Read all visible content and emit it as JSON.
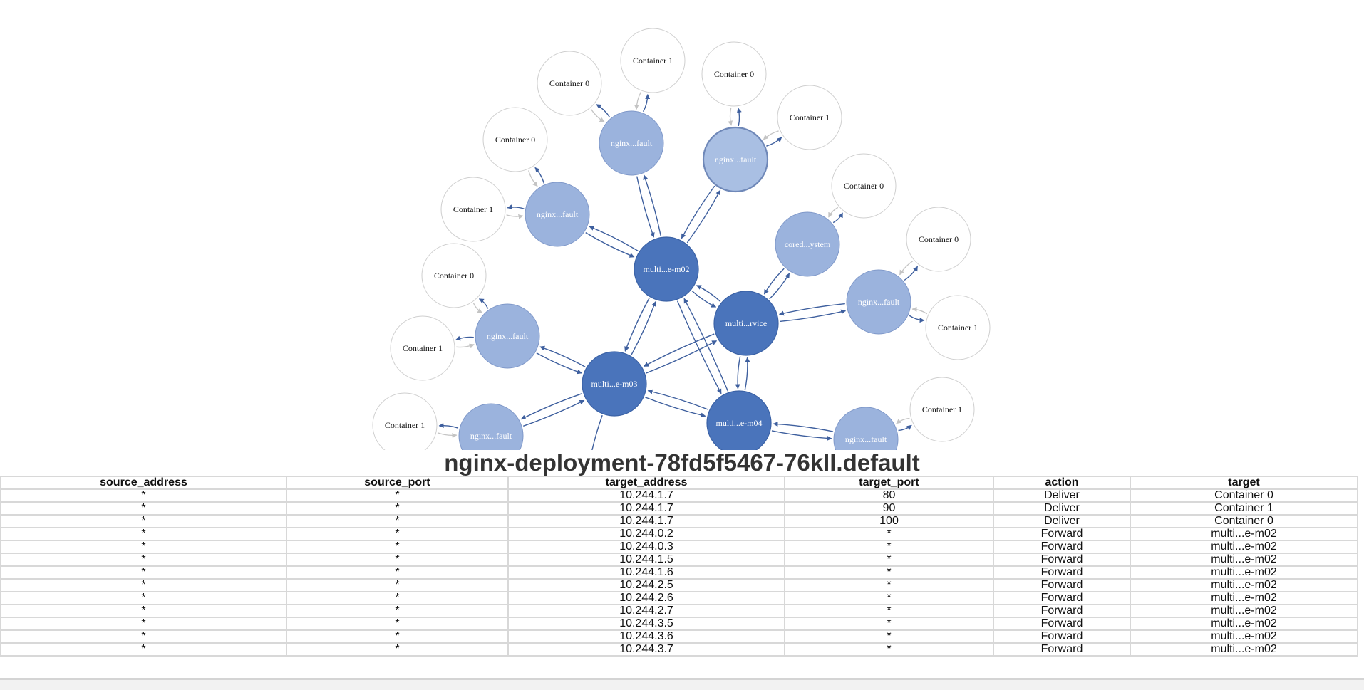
{
  "colors": {
    "host": "#4a74bb",
    "host_stroke": "#3b62a6",
    "pod": "#9bb3dd",
    "pod_stroke": "#7f98c9",
    "selected_pod": "#a9bfe3",
    "container": "#ffffff",
    "container_stroke": "#cfcfcf",
    "edge_strong": "#3e5f9e",
    "edge_light": "#c4c4c4"
  },
  "graph": {
    "nodes": [
      {
        "id": "m02",
        "label": "multi...e-m02",
        "kind": "host"
      },
      {
        "id": "rvice",
        "label": "multi...rvice",
        "kind": "host"
      },
      {
        "id": "m03",
        "label": "multi...e-m03",
        "kind": "host"
      },
      {
        "id": "m04",
        "label": "multi...e-m04",
        "kind": "host"
      },
      {
        "id": "p1",
        "label": "nginx...fault",
        "kind": "pod"
      },
      {
        "id": "p2",
        "label": "nginx...fault",
        "kind": "pod",
        "selected": true
      },
      {
        "id": "p3",
        "label": "nginx...fault",
        "kind": "pod"
      },
      {
        "id": "p4",
        "label": "nginx...fault",
        "kind": "pod"
      },
      {
        "id": "p5",
        "label": "nginx...fault",
        "kind": "pod"
      },
      {
        "id": "p6",
        "label": "nginx...fault",
        "kind": "pod"
      },
      {
        "id": "p7",
        "label": "nginx...fault",
        "kind": "pod"
      },
      {
        "id": "core",
        "label": "cored...ystem",
        "kind": "pod"
      },
      {
        "id": "c1a",
        "label": "Container 1",
        "kind": "container"
      },
      {
        "id": "c1b",
        "label": "Container 0",
        "kind": "container"
      },
      {
        "id": "c2a",
        "label": "Container 0",
        "kind": "container"
      },
      {
        "id": "c2b",
        "label": "Container 1",
        "kind": "container"
      },
      {
        "id": "c3a",
        "label": "Container 0",
        "kind": "container"
      },
      {
        "id": "c3b",
        "label": "Container 1",
        "kind": "container"
      },
      {
        "id": "c4a",
        "label": "Container 0",
        "kind": "container"
      },
      {
        "id": "c4b",
        "label": "Container 1",
        "kind": "container"
      },
      {
        "id": "c5a",
        "label": "Container 1",
        "kind": "container"
      },
      {
        "id": "c5b",
        "label": "Container 0",
        "kind": "container"
      },
      {
        "id": "c6a",
        "label": "Container 1",
        "kind": "container"
      },
      {
        "id": "c7a",
        "label": "Container 1",
        "kind": "container"
      },
      {
        "id": "ccore",
        "label": "Container 0",
        "kind": "container"
      }
    ],
    "edges": [
      {
        "from": "m02",
        "to": "rvice",
        "style": "strong"
      },
      {
        "from": "rvice",
        "to": "m02",
        "style": "strong"
      },
      {
        "from": "m02",
        "to": "m03",
        "style": "strong"
      },
      {
        "from": "m03",
        "to": "m02",
        "style": "strong"
      },
      {
        "from": "m02",
        "to": "m04",
        "style": "strong"
      },
      {
        "from": "m04",
        "to": "m02",
        "style": "strong"
      },
      {
        "from": "rvice",
        "to": "m03",
        "style": "strong"
      },
      {
        "from": "m03",
        "to": "rvice",
        "style": "strong"
      },
      {
        "from": "rvice",
        "to": "m04",
        "style": "strong"
      },
      {
        "from": "m04",
        "to": "rvice",
        "style": "strong"
      },
      {
        "from": "m03",
        "to": "m04",
        "style": "strong"
      },
      {
        "from": "m04",
        "to": "m03",
        "style": "strong"
      },
      {
        "from": "m02",
        "to": "p1",
        "style": "strong"
      },
      {
        "from": "p1",
        "to": "m02",
        "style": "strong"
      },
      {
        "from": "m02",
        "to": "p2",
        "style": "strong"
      },
      {
        "from": "p2",
        "to": "m02",
        "style": "strong"
      },
      {
        "from": "m02",
        "to": "p3",
        "style": "strong"
      },
      {
        "from": "p3",
        "to": "m02",
        "style": "strong"
      },
      {
        "from": "rvice",
        "to": "core",
        "style": "strong"
      },
      {
        "from": "core",
        "to": "rvice",
        "style": "strong"
      },
      {
        "from": "rvice",
        "to": "p4",
        "style": "strong"
      },
      {
        "from": "p4",
        "to": "rvice",
        "style": "strong"
      },
      {
        "from": "m03",
        "to": "p5",
        "style": "strong"
      },
      {
        "from": "p5",
        "to": "m03",
        "style": "strong"
      },
      {
        "from": "m03",
        "to": "p6",
        "style": "strong"
      },
      {
        "from": "p6",
        "to": "m03",
        "style": "strong"
      },
      {
        "from": "m04",
        "to": "p7",
        "style": "strong"
      },
      {
        "from": "p7",
        "to": "m04",
        "style": "strong"
      },
      {
        "from": "m03",
        "to": "stub",
        "style": "strong"
      },
      {
        "from": "p1",
        "to": "c1a",
        "style": "strong"
      },
      {
        "from": "c1a",
        "to": "p1",
        "style": "light"
      },
      {
        "from": "p1",
        "to": "c1b",
        "style": "strong"
      },
      {
        "from": "c1b",
        "to": "p1",
        "style": "light"
      },
      {
        "from": "p2",
        "to": "c2a",
        "style": "strong"
      },
      {
        "from": "c2a",
        "to": "p2",
        "style": "light"
      },
      {
        "from": "p2",
        "to": "c2b",
        "style": "strong"
      },
      {
        "from": "c2b",
        "to": "p2",
        "style": "light"
      },
      {
        "from": "p3",
        "to": "c3a",
        "style": "strong"
      },
      {
        "from": "c3a",
        "to": "p3",
        "style": "light"
      },
      {
        "from": "p3",
        "to": "c3b",
        "style": "strong"
      },
      {
        "from": "c3b",
        "to": "p3",
        "style": "light"
      },
      {
        "from": "p4",
        "to": "c4a",
        "style": "strong"
      },
      {
        "from": "c4a",
        "to": "p4",
        "style": "light"
      },
      {
        "from": "p4",
        "to": "c4b",
        "style": "strong"
      },
      {
        "from": "c4b",
        "to": "p4",
        "style": "light"
      },
      {
        "from": "p5",
        "to": "c5a",
        "style": "strong"
      },
      {
        "from": "c5a",
        "to": "p5",
        "style": "light"
      },
      {
        "from": "p5",
        "to": "c5b",
        "style": "strong"
      },
      {
        "from": "c5b",
        "to": "p5",
        "style": "light"
      },
      {
        "from": "p6",
        "to": "c6a",
        "style": "strong"
      },
      {
        "from": "c6a",
        "to": "p6",
        "style": "light"
      },
      {
        "from": "p7",
        "to": "c7a",
        "style": "strong"
      },
      {
        "from": "c7a",
        "to": "p7",
        "style": "light"
      },
      {
        "from": "core",
        "to": "ccore",
        "style": "strong"
      },
      {
        "from": "ccore",
        "to": "core",
        "style": "light"
      }
    ]
  },
  "detail": {
    "title": "nginx-deployment-78fd5f5467-76kll.default",
    "columns": [
      "source_address",
      "source_port",
      "target_address",
      "target_port",
      "action",
      "target"
    ],
    "rows": [
      [
        "*",
        "*",
        "10.244.1.7",
        "80",
        "Deliver",
        "Container 0"
      ],
      [
        "*",
        "*",
        "10.244.1.7",
        "90",
        "Deliver",
        "Container 1"
      ],
      [
        "*",
        "*",
        "10.244.1.7",
        "100",
        "Deliver",
        "Container 0"
      ],
      [
        "*",
        "*",
        "10.244.0.2",
        "*",
        "Forward",
        "multi...e-m02"
      ],
      [
        "*",
        "*",
        "10.244.0.3",
        "*",
        "Forward",
        "multi...e-m02"
      ],
      [
        "*",
        "*",
        "10.244.1.5",
        "*",
        "Forward",
        "multi...e-m02"
      ],
      [
        "*",
        "*",
        "10.244.1.6",
        "*",
        "Forward",
        "multi...e-m02"
      ],
      [
        "*",
        "*",
        "10.244.2.5",
        "*",
        "Forward",
        "multi...e-m02"
      ],
      [
        "*",
        "*",
        "10.244.2.6",
        "*",
        "Forward",
        "multi...e-m02"
      ],
      [
        "*",
        "*",
        "10.244.2.7",
        "*",
        "Forward",
        "multi...e-m02"
      ],
      [
        "*",
        "*",
        "10.244.3.5",
        "*",
        "Forward",
        "multi...e-m02"
      ],
      [
        "*",
        "*",
        "10.244.3.6",
        "*",
        "Forward",
        "multi...e-m02"
      ],
      [
        "*",
        "*",
        "10.244.3.7",
        "*",
        "Forward",
        "multi...e-m02"
      ]
    ]
  }
}
